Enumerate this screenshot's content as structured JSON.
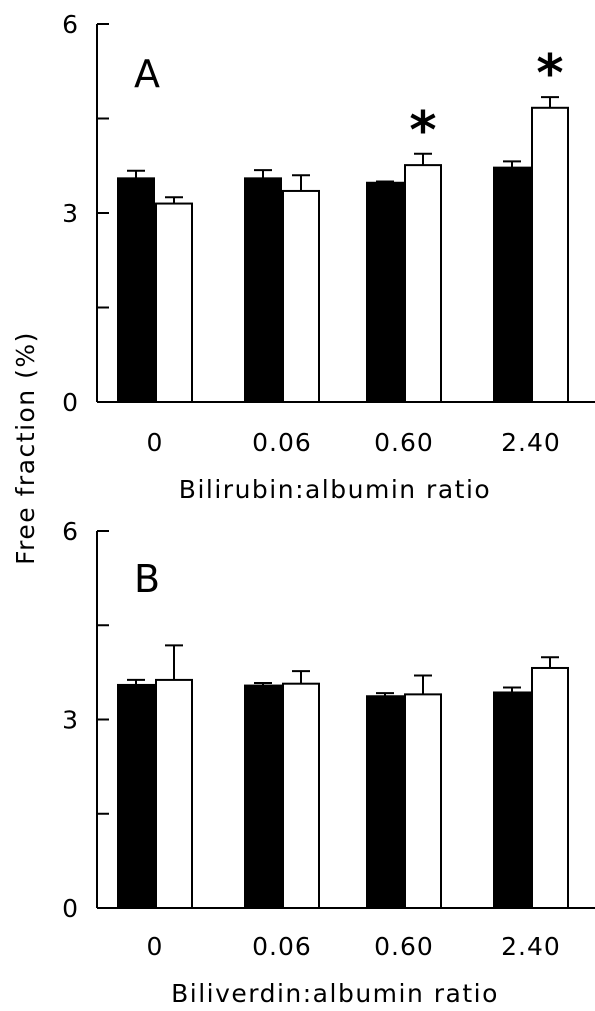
{
  "figure": {
    "ylabel": "Free fraction (%)"
  },
  "chart_data": [
    {
      "type": "bar",
      "panel": "A",
      "xlabel": "Bilirubin:albumin ratio",
      "ylabel": "Free fraction (%)",
      "categories": [
        "0",
        "0.06",
        "0.60",
        "2.40"
      ],
      "ylim": [
        0,
        6
      ],
      "yticks": [
        0,
        3,
        6
      ],
      "series": [
        {
          "values": [
            3.55,
            3.55,
            3.48,
            3.72
          ],
          "errors": [
            0.12,
            0.13,
            0.02,
            0.1
          ],
          "color": "#000000"
        },
        {
          "values": [
            3.15,
            3.35,
            3.76,
            4.67
          ],
          "errors": [
            0.1,
            0.25,
            0.18,
            0.17
          ],
          "color": "#ffffff"
        }
      ],
      "significance": [
        {
          "category": "0.60",
          "series": 1,
          "mark": "*"
        },
        {
          "category": "2.40",
          "series": 1,
          "mark": "*"
        }
      ],
      "grid": false
    },
    {
      "type": "bar",
      "panel": "B",
      "xlabel": "Biliverdin:albumin ratio",
      "ylabel": "Free fraction (%)",
      "categories": [
        "0",
        "0.06",
        "0.60",
        "2.40"
      ],
      "ylim": [
        0,
        6
      ],
      "yticks": [
        0,
        3,
        6
      ],
      "series": [
        {
          "values": [
            3.55,
            3.54,
            3.37,
            3.43
          ],
          "errors": [
            0.08,
            0.04,
            0.05,
            0.08
          ],
          "color": "#000000"
        },
        {
          "values": [
            3.63,
            3.57,
            3.4,
            3.82
          ],
          "errors": [
            0.55,
            0.2,
            0.3,
            0.17
          ],
          "color": "#ffffff"
        }
      ],
      "significance": [],
      "grid": false
    }
  ]
}
